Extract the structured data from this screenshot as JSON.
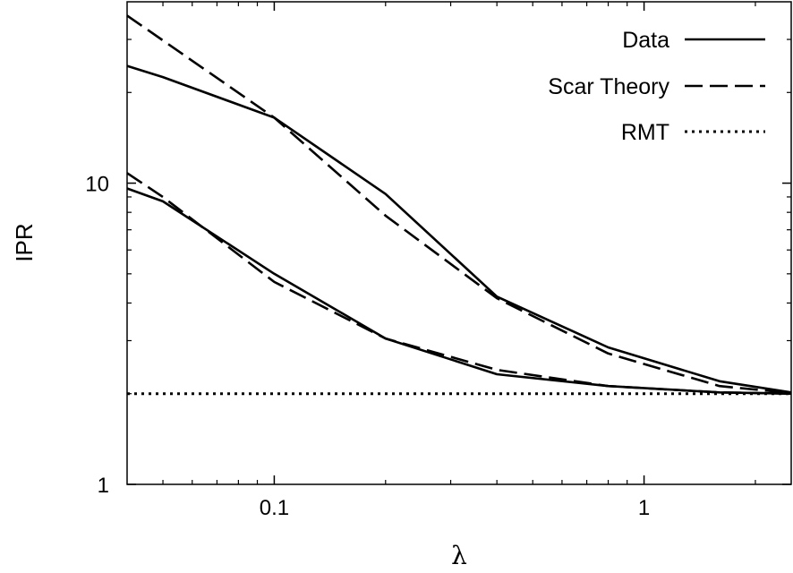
{
  "chart_data": {
    "type": "line",
    "title": "",
    "xlabel": "λ",
    "ylabel": "IPR",
    "xscale": "log",
    "yscale": "log",
    "xlim": [
      0.04,
      2.5
    ],
    "ylim": [
      1,
      40
    ],
    "xticks": [
      {
        "value": 0.1,
        "label": "0.1"
      },
      {
        "value": 1,
        "label": "1"
      }
    ],
    "yticks": [
      {
        "value": 1,
        "label": "1"
      },
      {
        "value": 10,
        "label": "10"
      }
    ],
    "grid": false,
    "legend_position": "top-right",
    "legend": [
      {
        "label": "Data",
        "style": "solid"
      },
      {
        "label": "Scar Theory",
        "style": "dashed"
      },
      {
        "label": "RMT",
        "style": "dotted"
      }
    ],
    "series": [
      {
        "legend_entry": "Data",
        "style": "solid",
        "x": [
          0.04,
          0.05,
          0.1,
          0.2,
          0.4,
          0.8,
          1.6,
          2.5
        ],
        "y": [
          24.5,
          22.5,
          16.5,
          9.2,
          4.2,
          2.85,
          2.2,
          2.02
        ]
      },
      {
        "legend_entry": "Data",
        "style": "solid",
        "x": [
          0.04,
          0.05,
          0.1,
          0.2,
          0.4,
          0.8,
          1.6,
          2.5
        ],
        "y": [
          9.6,
          8.7,
          5.0,
          3.05,
          2.32,
          2.12,
          2.02,
          2.0
        ]
      },
      {
        "legend_entry": "Scar Theory",
        "style": "dashed",
        "x": [
          0.04,
          0.1,
          0.2,
          0.4,
          0.8,
          1.6,
          2.5
        ],
        "y": [
          36.0,
          16.5,
          7.8,
          4.15,
          2.72,
          2.12,
          2.01
        ]
      },
      {
        "legend_entry": "Scar Theory",
        "style": "dashed",
        "x": [
          0.04,
          0.05,
          0.1,
          0.2,
          0.4,
          0.8,
          1.6,
          2.5
        ],
        "y": [
          10.8,
          9.0,
          4.7,
          3.05,
          2.4,
          2.12,
          2.02,
          2.0
        ]
      },
      {
        "legend_entry": "RMT",
        "style": "dotted",
        "x": [
          0.04,
          2.5
        ],
        "y": [
          2.0,
          2.0
        ]
      }
    ]
  }
}
